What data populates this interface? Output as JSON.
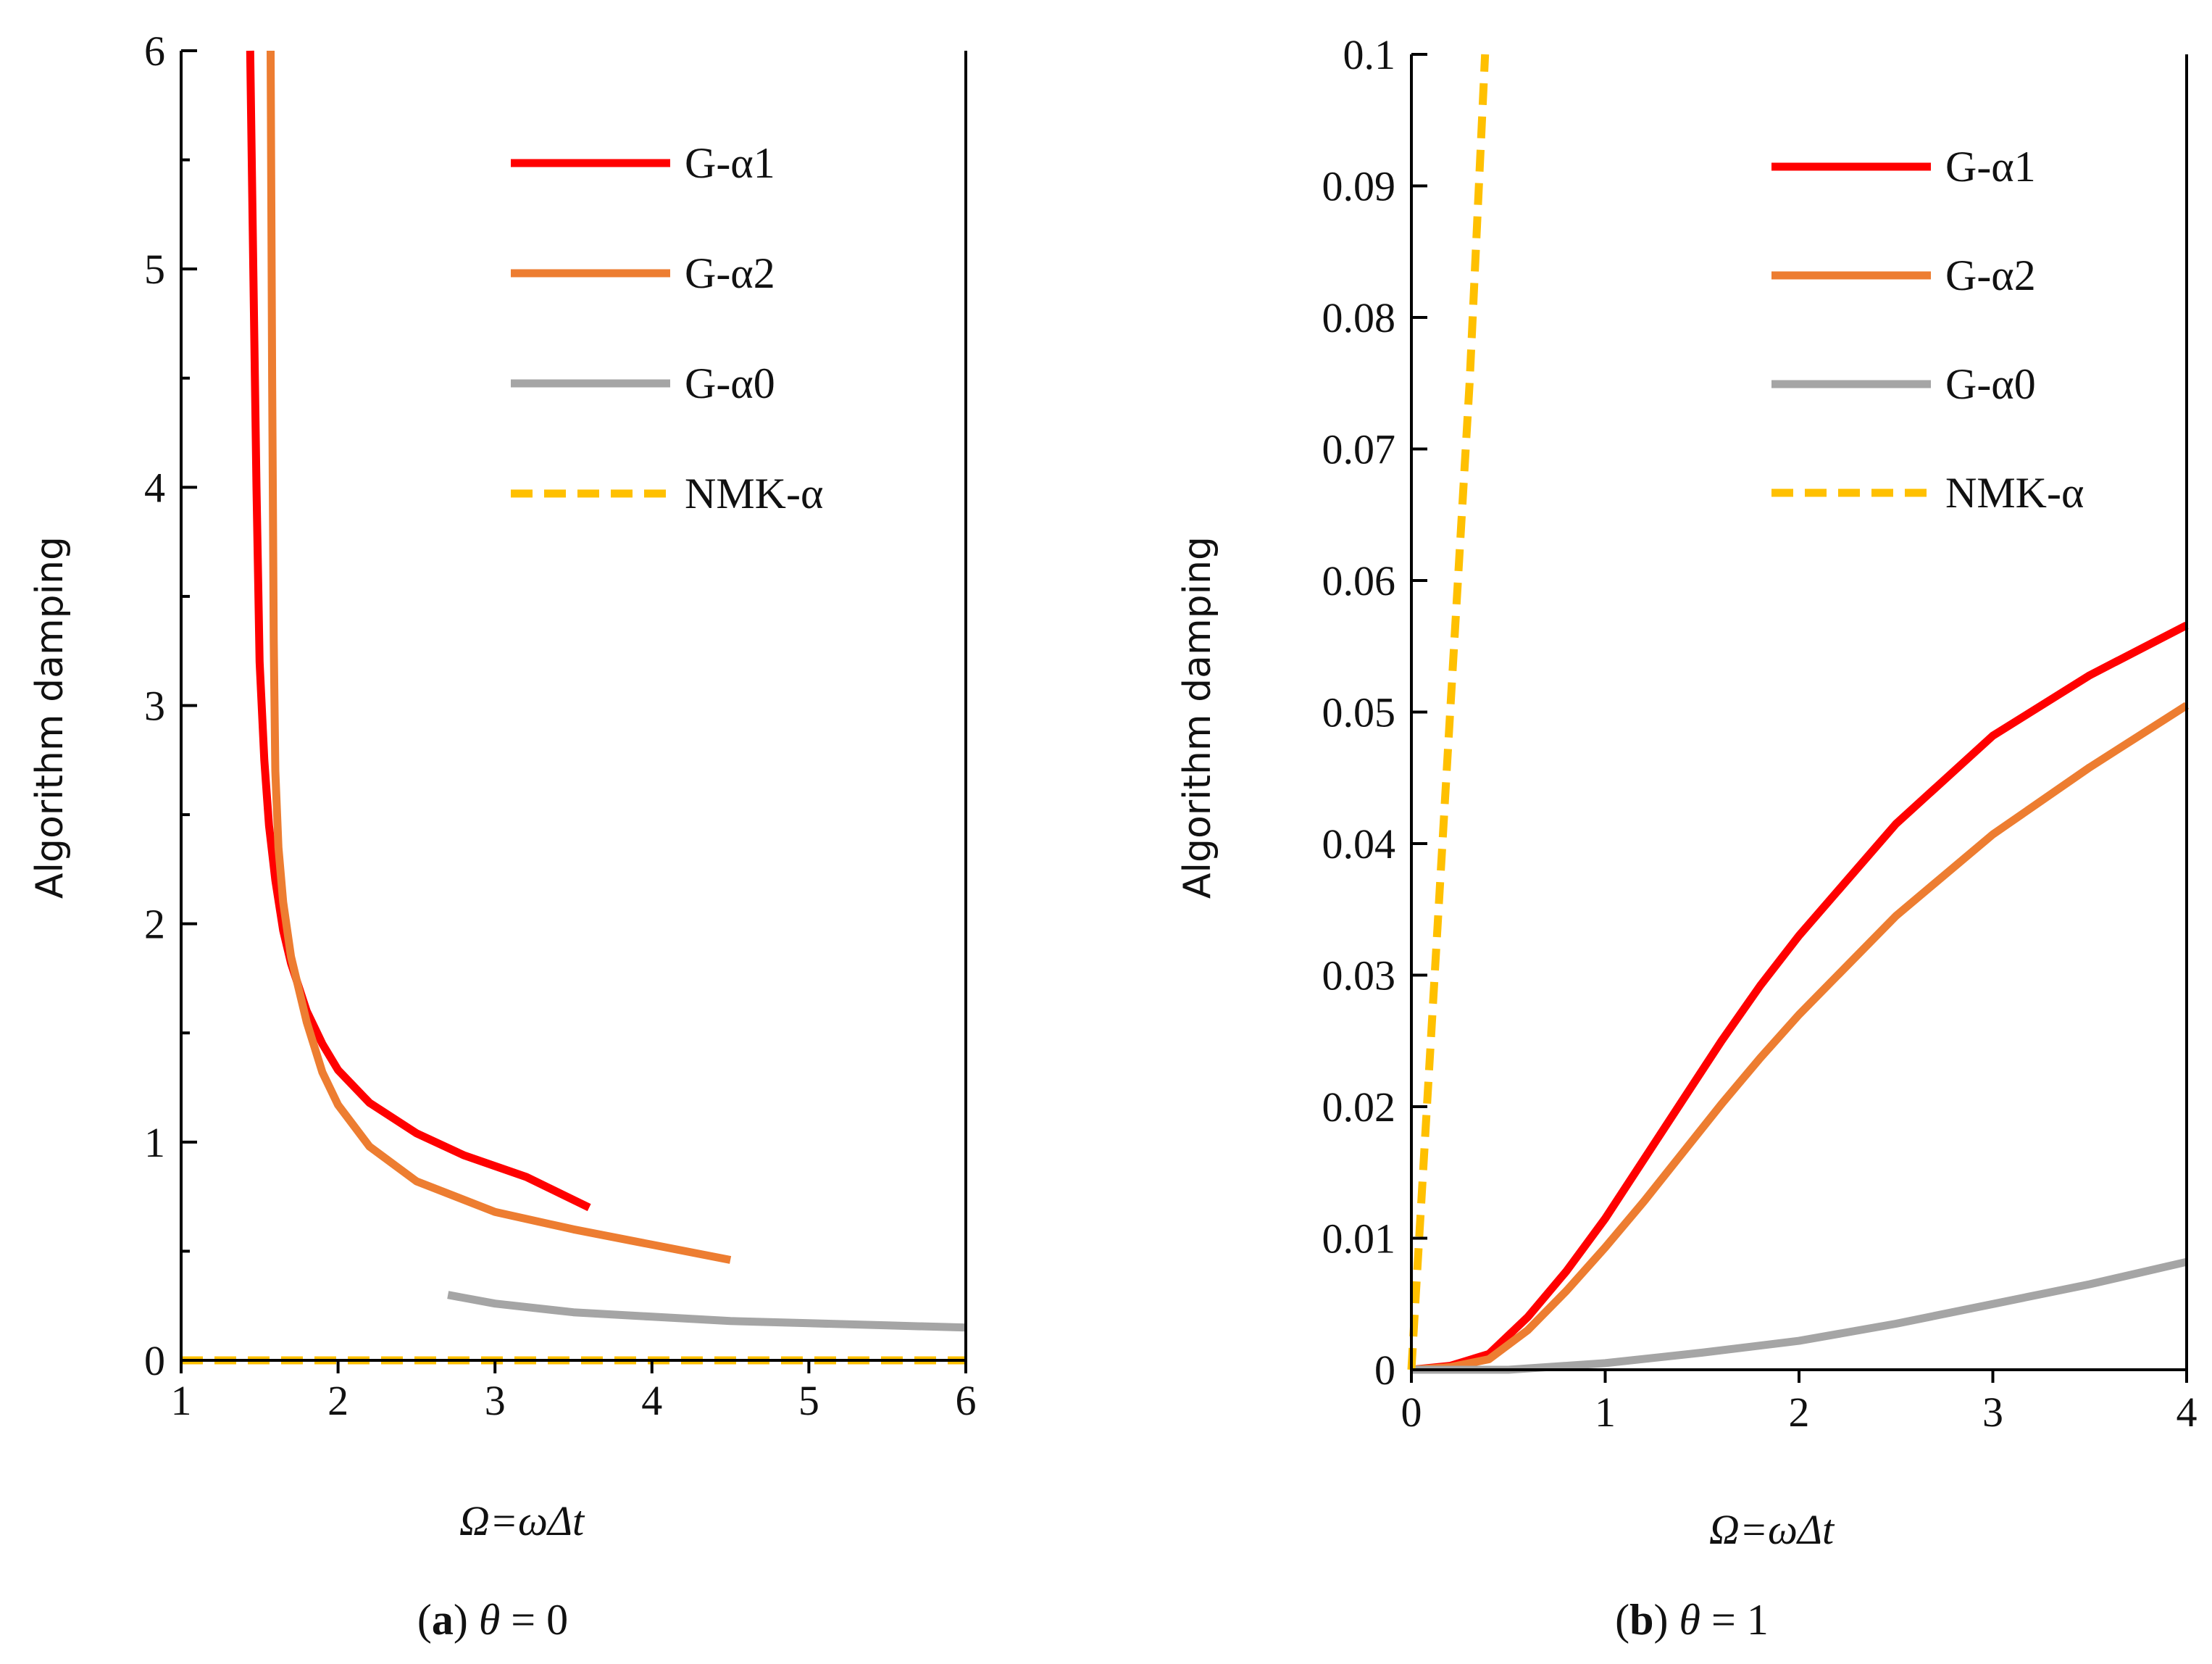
{
  "chart_data": [
    {
      "type": "line",
      "caption_letter": "a",
      "caption_symbol": "θ",
      "caption_eq": "= 0",
      "xlabel": "Ω=ωΔt",
      "ylabel": "Algorithm damping",
      "xlim": [
        1,
        6
      ],
      "ylim": [
        0,
        6
      ],
      "xticks": [
        "1",
        "2",
        "3",
        "4",
        "5",
        "6"
      ],
      "yticks": [
        "0",
        "1",
        "2",
        "3",
        "4",
        "5",
        "6"
      ],
      "minor_y_step": 0.5,
      "legend": "top-right",
      "series": [
        {
          "name": "G-α1",
          "color": "#ff0000",
          "dash": "solid",
          "x": [
            1.44,
            1.46,
            1.48,
            1.5,
            1.53,
            1.56,
            1.6,
            1.65,
            1.7,
            1.8,
            1.9,
            2.0,
            2.2,
            2.5,
            2.8,
            3.2,
            3.6
          ],
          "y": [
            6.0,
            5.0,
            4.0,
            3.2,
            2.75,
            2.45,
            2.2,
            1.97,
            1.82,
            1.6,
            1.45,
            1.33,
            1.18,
            1.04,
            0.94,
            0.84,
            0.7
          ]
        },
        {
          "name": "G-α2",
          "color": "#ed7d31",
          "dash": "solid",
          "x": [
            1.57,
            1.58,
            1.59,
            1.6,
            1.62,
            1.65,
            1.7,
            1.8,
            1.9,
            2.0,
            2.2,
            2.5,
            3.0,
            3.5,
            4.0,
            4.5
          ],
          "y": [
            6.0,
            4.5,
            3.3,
            2.7,
            2.35,
            2.1,
            1.85,
            1.55,
            1.32,
            1.17,
            0.98,
            0.82,
            0.68,
            0.6,
            0.53,
            0.46
          ]
        },
        {
          "name": "G-α0",
          "color": "#a5a5a5",
          "dash": "solid",
          "x": [
            2.7,
            3.0,
            3.5,
            4.0,
            4.5,
            5.0,
            5.5,
            6.0
          ],
          "y": [
            0.3,
            0.26,
            0.22,
            0.2,
            0.18,
            0.17,
            0.16,
            0.15
          ]
        },
        {
          "name": "NMK-α",
          "color": "#ffc000",
          "dash": "dashed",
          "x": [
            1,
            6
          ],
          "y": [
            0,
            0
          ]
        }
      ]
    },
    {
      "type": "line",
      "caption_letter": "b",
      "caption_symbol": "θ",
      "caption_eq": "= 1",
      "xlabel": "Ω=ωΔt",
      "ylabel": "Algorithm damping",
      "xlim": [
        0,
        4
      ],
      "ylim": [
        0,
        0.1
      ],
      "xticks": [
        "0",
        "1",
        "2",
        "3",
        "4"
      ],
      "yticks": [
        "0",
        "0.01",
        "0.02",
        "0.03",
        "0.04",
        "0.05",
        "0.06",
        "0.07",
        "0.08",
        "0.09",
        "0.1"
      ],
      "minor_y_step": 0,
      "legend": "top-right",
      "series": [
        {
          "name": "G-α1",
          "color": "#ff0000",
          "dash": "solid",
          "x": [
            0,
            0.2,
            0.4,
            0.6,
            0.8,
            1.0,
            1.2,
            1.4,
            1.6,
            1.8,
            2.0,
            2.5,
            3.0,
            3.5,
            4.0
          ],
          "y": [
            0,
            0.0003,
            0.0012,
            0.004,
            0.0075,
            0.0115,
            0.016,
            0.0205,
            0.025,
            0.0292,
            0.033,
            0.0415,
            0.0482,
            0.0528,
            0.0566
          ]
        },
        {
          "name": "G-α2",
          "color": "#ed7d31",
          "dash": "solid",
          "x": [
            0,
            0.2,
            0.4,
            0.6,
            0.8,
            1.0,
            1.2,
            1.4,
            1.6,
            1.8,
            2.0,
            2.5,
            3.0,
            3.5,
            4.0
          ],
          "y": [
            0,
            0.0002,
            0.0008,
            0.003,
            0.006,
            0.0093,
            0.0128,
            0.0165,
            0.0202,
            0.0237,
            0.027,
            0.0345,
            0.0407,
            0.0458,
            0.0505
          ]
        },
        {
          "name": "G-α0",
          "color": "#a5a5a5",
          "dash": "solid",
          "x": [
            0,
            0.5,
            1.0,
            1.5,
            2.0,
            2.5,
            3.0,
            3.5,
            4.0
          ],
          "y": [
            0,
            0,
            0.0005,
            0.0013,
            0.0022,
            0.0035,
            0.005,
            0.0065,
            0.0082
          ]
        },
        {
          "name": "NMK-α",
          "color": "#ffc000",
          "dash": "dashed",
          "x": [
            0,
            0.1,
            0.2,
            0.3,
            0.38
          ],
          "y": [
            0,
            0.025,
            0.05,
            0.075,
            0.1
          ]
        }
      ]
    }
  ]
}
